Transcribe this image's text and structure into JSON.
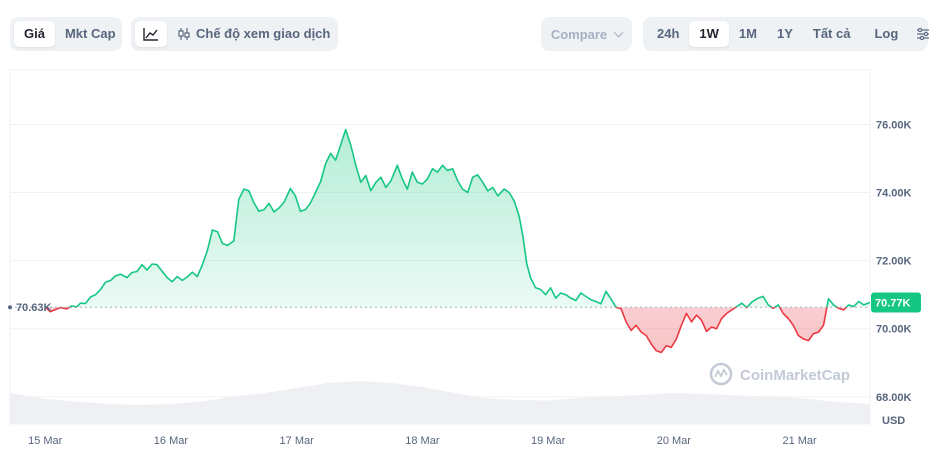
{
  "toolbar": {
    "metric_tabs": [
      {
        "label": "Giá",
        "active": true
      },
      {
        "label": "Mkt Cap",
        "active": false
      }
    ],
    "view_mode_label": "Chế độ xem giao dịch",
    "compare_label": "Compare",
    "ranges": [
      {
        "label": "24h",
        "active": false
      },
      {
        "label": "1W",
        "active": true
      },
      {
        "label": "1M",
        "active": false
      },
      {
        "label": "1Y",
        "active": false
      },
      {
        "label": "Tất cả",
        "active": false
      }
    ],
    "log_label": "Log"
  },
  "watermark": "CoinMarketCap",
  "colors": {
    "up": "#16c784",
    "down": "#ea3943",
    "current_badge": "#16c784",
    "grid": "#eff2f5",
    "volume": "#eef0f3"
  },
  "chart_data": {
    "type": "area",
    "y_axis_position": "right",
    "ylim": [
      67200,
      77600
    ],
    "y_ticks": [
      68000,
      70000,
      72000,
      74000,
      76000
    ],
    "y_tick_labels": [
      "68.00K",
      "70.00K",
      "72.00K",
      "74.00K",
      "76.00K"
    ],
    "y_unit_label": "USD",
    "x_tick_labels": [
      "15 Mar",
      "16 Mar",
      "17 Mar",
      "18 Mar",
      "19 Mar",
      "20 Mar",
      "21 Mar"
    ],
    "xlim": [
      -0.28,
      6.56
    ],
    "baseline": {
      "value": 70630,
      "label": "70.63K"
    },
    "current": {
      "value": 70770,
      "label": "70.77K"
    },
    "grid": true,
    "series": [
      {
        "points": [
          [
            0.0,
            70630
          ],
          [
            0.04,
            70500
          ],
          [
            0.08,
            70560
          ],
          [
            0.12,
            70620
          ],
          [
            0.17,
            70580
          ],
          [
            0.21,
            70670
          ],
          [
            0.25,
            70640
          ],
          [
            0.28,
            70750
          ],
          [
            0.32,
            70740
          ],
          [
            0.36,
            70930
          ],
          [
            0.4,
            71000
          ],
          [
            0.44,
            71150
          ],
          [
            0.48,
            71370
          ],
          [
            0.52,
            71420
          ],
          [
            0.56,
            71550
          ],
          [
            0.6,
            71600
          ],
          [
            0.65,
            71500
          ],
          [
            0.69,
            71650
          ],
          [
            0.73,
            71680
          ],
          [
            0.77,
            71880
          ],
          [
            0.81,
            71720
          ],
          [
            0.85,
            71900
          ],
          [
            0.89,
            71880
          ],
          [
            0.93,
            71690
          ],
          [
            0.97,
            71500
          ],
          [
            1.01,
            71380
          ],
          [
            1.05,
            71530
          ],
          [
            1.09,
            71420
          ],
          [
            1.13,
            71520
          ],
          [
            1.17,
            71660
          ],
          [
            1.21,
            71530
          ],
          [
            1.25,
            71880
          ],
          [
            1.29,
            72300
          ],
          [
            1.33,
            72900
          ],
          [
            1.37,
            72850
          ],
          [
            1.41,
            72500
          ],
          [
            1.45,
            72450
          ],
          [
            1.5,
            72580
          ],
          [
            1.54,
            73800
          ],
          [
            1.58,
            74100
          ],
          [
            1.62,
            74050
          ],
          [
            1.66,
            73700
          ],
          [
            1.7,
            73450
          ],
          [
            1.74,
            73500
          ],
          [
            1.78,
            73680
          ],
          [
            1.82,
            73430
          ],
          [
            1.86,
            73550
          ],
          [
            1.9,
            73720
          ],
          [
            1.95,
            74120
          ],
          [
            1.99,
            73900
          ],
          [
            2.03,
            73450
          ],
          [
            2.07,
            73500
          ],
          [
            2.11,
            73700
          ],
          [
            2.15,
            74000
          ],
          [
            2.19,
            74320
          ],
          [
            2.23,
            74850
          ],
          [
            2.27,
            75150
          ],
          [
            2.31,
            74950
          ],
          [
            2.35,
            75400
          ],
          [
            2.39,
            75850
          ],
          [
            2.43,
            75400
          ],
          [
            2.47,
            74800
          ],
          [
            2.51,
            74300
          ],
          [
            2.55,
            74500
          ],
          [
            2.59,
            74050
          ],
          [
            2.63,
            74300
          ],
          [
            2.67,
            74450
          ],
          [
            2.71,
            74150
          ],
          [
            2.75,
            74350
          ],
          [
            2.8,
            74800
          ],
          [
            2.84,
            74400
          ],
          [
            2.88,
            74100
          ],
          [
            2.92,
            74600
          ],
          [
            2.96,
            74300
          ],
          [
            3.0,
            74250
          ],
          [
            3.04,
            74400
          ],
          [
            3.08,
            74700
          ],
          [
            3.12,
            74600
          ],
          [
            3.16,
            74800
          ],
          [
            3.2,
            74650
          ],
          [
            3.24,
            74700
          ],
          [
            3.28,
            74350
          ],
          [
            3.32,
            74100
          ],
          [
            3.36,
            74000
          ],
          [
            3.4,
            74450
          ],
          [
            3.44,
            74520
          ],
          [
            3.48,
            74300
          ],
          [
            3.52,
            74050
          ],
          [
            3.56,
            74150
          ],
          [
            3.6,
            73900
          ],
          [
            3.65,
            74100
          ],
          [
            3.69,
            74000
          ],
          [
            3.73,
            73750
          ],
          [
            3.77,
            73300
          ],
          [
            3.8,
            72700
          ],
          [
            3.83,
            71900
          ],
          [
            3.86,
            71500
          ],
          [
            3.9,
            71200
          ],
          [
            3.94,
            71150
          ],
          [
            3.98,
            71000
          ],
          [
            4.02,
            71200
          ],
          [
            4.06,
            70900
          ],
          [
            4.1,
            71050
          ],
          [
            4.14,
            71000
          ],
          [
            4.18,
            70900
          ],
          [
            4.22,
            70830
          ],
          [
            4.26,
            71050
          ],
          [
            4.3,
            70950
          ],
          [
            4.34,
            70850
          ],
          [
            4.38,
            70800
          ],
          [
            4.42,
            70730
          ],
          [
            4.46,
            71100
          ],
          [
            4.5,
            70870
          ],
          [
            4.54,
            70630
          ],
          [
            4.58,
            70580
          ],
          [
            4.62,
            70200
          ],
          [
            4.66,
            69950
          ],
          [
            4.7,
            70100
          ],
          [
            4.74,
            69900
          ],
          [
            4.78,
            69800
          ],
          [
            4.82,
            69550
          ],
          [
            4.86,
            69350
          ],
          [
            4.9,
            69300
          ],
          [
            4.94,
            69500
          ],
          [
            4.98,
            69450
          ],
          [
            5.02,
            69700
          ],
          [
            5.06,
            70100
          ],
          [
            5.1,
            70450
          ],
          [
            5.14,
            70200
          ],
          [
            5.18,
            70400
          ],
          [
            5.22,
            70250
          ],
          [
            5.26,
            69920
          ],
          [
            5.3,
            70050
          ],
          [
            5.34,
            70000
          ],
          [
            5.38,
            70300
          ],
          [
            5.42,
            70450
          ],
          [
            5.46,
            70550
          ],
          [
            5.5,
            70650
          ],
          [
            5.54,
            70750
          ],
          [
            5.58,
            70620
          ],
          [
            5.62,
            70780
          ],
          [
            5.67,
            70900
          ],
          [
            5.71,
            70950
          ],
          [
            5.75,
            70700
          ],
          [
            5.79,
            70600
          ],
          [
            5.83,
            70700
          ],
          [
            5.87,
            70450
          ],
          [
            5.91,
            70300
          ],
          [
            5.95,
            70100
          ],
          [
            5.99,
            69800
          ],
          [
            6.03,
            69700
          ],
          [
            6.07,
            69650
          ],
          [
            6.11,
            69850
          ],
          [
            6.15,
            69900
          ],
          [
            6.19,
            70100
          ],
          [
            6.23,
            70880
          ],
          [
            6.27,
            70700
          ],
          [
            6.31,
            70600
          ],
          [
            6.35,
            70550
          ],
          [
            6.39,
            70700
          ],
          [
            6.43,
            70650
          ],
          [
            6.47,
            70800
          ],
          [
            6.51,
            70700
          ],
          [
            6.56,
            70770
          ]
        ]
      }
    ],
    "volume": {
      "points": [
        [
          -0.28,
          0.62
        ],
        [
          0.0,
          0.5
        ],
        [
          0.25,
          0.45
        ],
        [
          0.5,
          0.4
        ],
        [
          0.75,
          0.38
        ],
        [
          1.0,
          0.4
        ],
        [
          1.25,
          0.45
        ],
        [
          1.5,
          0.55
        ],
        [
          1.75,
          0.62
        ],
        [
          2.0,
          0.72
        ],
        [
          2.25,
          0.82
        ],
        [
          2.5,
          0.86
        ],
        [
          2.75,
          0.82
        ],
        [
          3.0,
          0.74
        ],
        [
          3.25,
          0.62
        ],
        [
          3.5,
          0.52
        ],
        [
          3.75,
          0.48
        ],
        [
          4.0,
          0.47
        ],
        [
          4.25,
          0.52
        ],
        [
          4.5,
          0.55
        ],
        [
          4.75,
          0.58
        ],
        [
          5.0,
          0.62
        ],
        [
          5.25,
          0.6
        ],
        [
          5.5,
          0.57
        ],
        [
          5.75,
          0.55
        ],
        [
          6.0,
          0.52
        ],
        [
          6.25,
          0.45
        ],
        [
          6.56,
          0.4
        ]
      ]
    }
  }
}
